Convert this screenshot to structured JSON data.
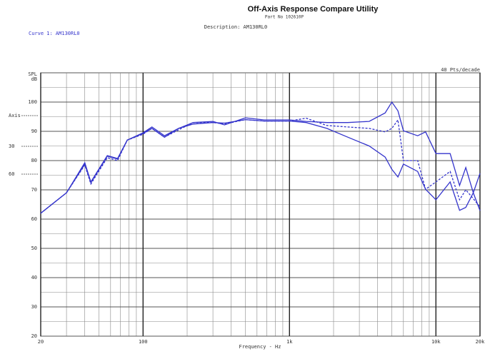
{
  "chart_data": {
    "type": "line",
    "title": "Off-Axis Response Compare Utility",
    "subtitle": "Part No 102610P",
    "description": "Description: AM130RL0",
    "curve_label": "Curve 1: AM130RL0",
    "resolution": "40 Pts/decade",
    "xlabel": "Frequency - Hz",
    "ylabel": [
      "SPL",
      "dB"
    ],
    "log_x": true,
    "xlim": [
      20,
      20000
    ],
    "xticks": [
      20,
      100,
      {
        "value": 1000,
        "label": "1k"
      },
      {
        "value": 10000,
        "label": "10k"
      },
      {
        "value": 20000,
        "label": "20k"
      }
    ],
    "xgrid": [
      30,
      40,
      50,
      60,
      70,
      80,
      90,
      200,
      300,
      400,
      500,
      600,
      700,
      800,
      900,
      2000,
      3000,
      4000,
      5000,
      6000,
      7000,
      8000,
      9000
    ],
    "ylim": [
      20,
      110
    ],
    "yticks": [
      20,
      30,
      40,
      50,
      60,
      70,
      80,
      90,
      100
    ],
    "ygrid": [
      25,
      35,
      45,
      55,
      65,
      75,
      85,
      95,
      105,
      110
    ],
    "x": [
      20,
      30,
      40,
      44,
      57,
      67,
      78,
      100,
      115,
      140,
      175,
      220,
      300,
      360,
      500,
      670,
      1000,
      1300,
      1800,
      2500,
      3500,
      4500,
      5000,
      5500,
      6000,
      7500,
      8500,
      10000,
      12500,
      14500,
      16000,
      18000,
      20000
    ],
    "series": [
      {
        "name": "Axis",
        "color": "#3535cc",
        "dash": false,
        "values": [
          62,
          69,
          79.3,
          72.7,
          81.7,
          80.7,
          87,
          89.5,
          91.5,
          88.5,
          91,
          93,
          93.4,
          92.2,
          94.6,
          93.9,
          93.9,
          93.4,
          93,
          93,
          93.4,
          96.3,
          100,
          97,
          90.2,
          88.5,
          89.8,
          82.4,
          82.4,
          71.5,
          77.6,
          69,
          75.6
        ]
      },
      {
        "name": "30",
        "color": "#3535cc",
        "dash": true,
        "values": [
          62,
          69,
          78.5,
          72,
          81,
          80,
          87,
          89,
          91,
          88,
          90.5,
          93,
          93,
          92.5,
          94,
          93.5,
          93.5,
          94.5,
          92,
          91.5,
          91,
          89.8,
          91,
          93.9,
          80,
          80,
          70.2,
          72.7,
          76.3,
          66.6,
          70,
          67,
          64.1
        ]
      },
      {
        "name": "60",
        "color": "#3535cc",
        "dash": false,
        "values": [
          62,
          69,
          78.8,
          72.5,
          81.5,
          80.5,
          87,
          89.3,
          91,
          88,
          91,
          92.5,
          93,
          92.8,
          94,
          93.5,
          93.5,
          93,
          91,
          88,
          85,
          81.2,
          77,
          74.4,
          78.8,
          76.3,
          70.2,
          66.6,
          72.7,
          63,
          64,
          69,
          62.9
        ]
      }
    ]
  }
}
